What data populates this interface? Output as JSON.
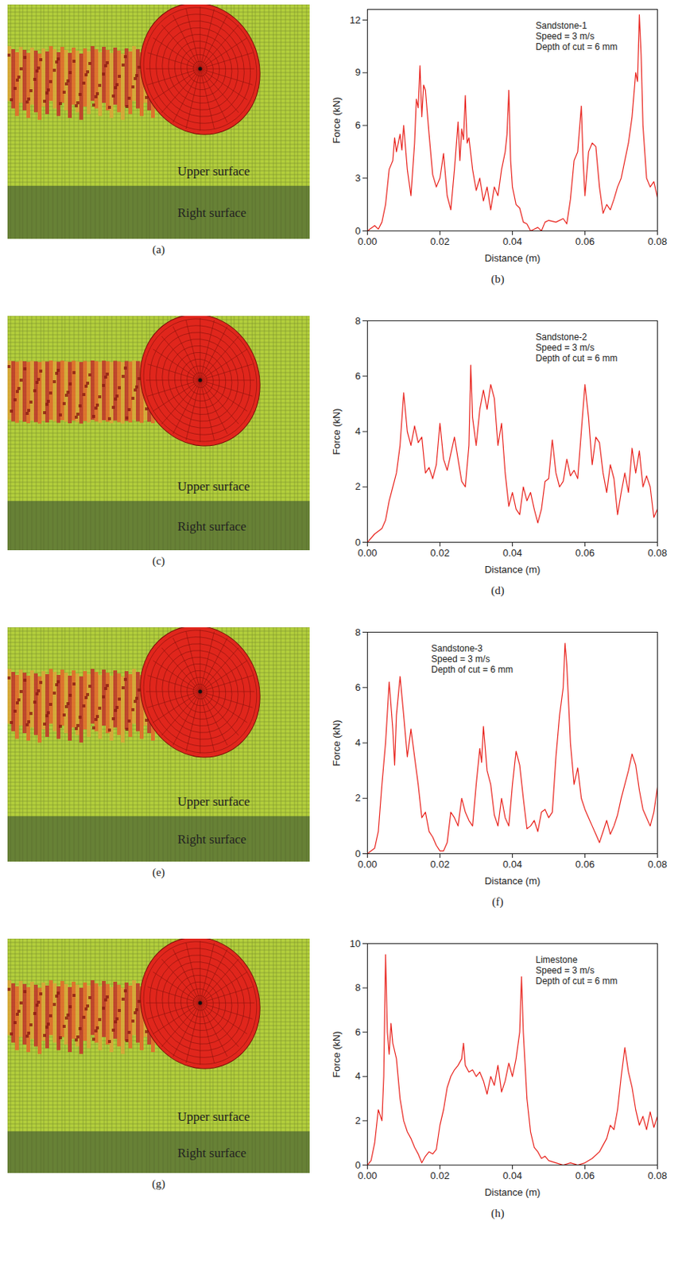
{
  "images": [
    {
      "caption": "(a)",
      "labels": [
        "Upper surface",
        "Right surface"
      ]
    },
    {
      "caption": "(c)",
      "labels": [
        "Upper surface",
        "Right surface"
      ]
    },
    {
      "caption": "(e)",
      "labels": [
        "Upper surface",
        "Right surface"
      ]
    },
    {
      "caption": "(g)",
      "labels": [
        "Upper surface",
        "Right surface"
      ]
    }
  ],
  "chart_data": [
    {
      "type": "line",
      "caption": "(b)",
      "annotations": [
        "Sandstone-1",
        "Speed = 3 m/s",
        "Depth of cut = 6 mm"
      ],
      "x_label": "Distance (m)",
      "y_label": "Force (kN)",
      "color": "#e8201a",
      "xlim": [
        0,
        0.08
      ],
      "xticks": [
        {
          "value": 0,
          "label": "0.00"
        },
        {
          "value": 0.02,
          "label": "0.02"
        },
        {
          "value": 0.04,
          "label": "0.04"
        },
        {
          "value": 0.06,
          "label": "0.06"
        },
        {
          "value": 0.08,
          "label": "0.08"
        }
      ],
      "ylim": [
        0,
        12.6
      ],
      "yticks": [
        0,
        3,
        6,
        9,
        12
      ],
      "x": [
        0,
        0.002,
        0.003,
        0.004,
        0.005,
        0.006,
        0.007,
        0.0075,
        0.008,
        0.009,
        0.0095,
        0.01,
        0.011,
        0.012,
        0.013,
        0.0135,
        0.014,
        0.0145,
        0.015,
        0.0155,
        0.016,
        0.017,
        0.018,
        0.019,
        0.02,
        0.021,
        0.022,
        0.023,
        0.024,
        0.025,
        0.0255,
        0.026,
        0.0265,
        0.027,
        0.0275,
        0.028,
        0.029,
        0.03,
        0.031,
        0.032,
        0.033,
        0.034,
        0.035,
        0.036,
        0.037,
        0.038,
        0.0385,
        0.039,
        0.0395,
        0.04,
        0.041,
        0.042,
        0.043,
        0.044,
        0.045,
        0.046,
        0.047,
        0.048,
        0.049,
        0.05,
        0.052,
        0.054,
        0.055,
        0.056,
        0.057,
        0.058,
        0.059,
        0.0595,
        0.06,
        0.061,
        0.062,
        0.063,
        0.064,
        0.065,
        0.066,
        0.067,
        0.068,
        0.069,
        0.07,
        0.071,
        0.072,
        0.073,
        0.074,
        0.0745,
        0.075,
        0.0755,
        0.076,
        0.077,
        0.078,
        0.079,
        0.08
      ],
      "values": [
        0,
        0.3,
        0.1,
        0.5,
        1.5,
        3.5,
        4.0,
        5.3,
        4.5,
        5.5,
        4.6,
        6.0,
        3.5,
        2.0,
        5.0,
        7.5,
        7.0,
        9.4,
        6.5,
        8.3,
        8.0,
        5.5,
        3.2,
        2.5,
        3.0,
        4.4,
        2.0,
        1.2,
        3.5,
        6.2,
        4.0,
        5.8,
        5.2,
        7.7,
        5.0,
        5.3,
        3.5,
        2.3,
        3.0,
        1.7,
        2.5,
        1.2,
        2.5,
        2.0,
        3.5,
        4.5,
        5.5,
        8.0,
        4.0,
        2.5,
        1.5,
        1.3,
        0.5,
        0.4,
        0.0,
        0.1,
        0.2,
        0.0,
        0.5,
        0.6,
        0.5,
        0.7,
        0.4,
        1.8,
        4.0,
        4.5,
        7.1,
        4.0,
        2.0,
        4.5,
        5.0,
        4.8,
        2.5,
        1.0,
        1.5,
        1.2,
        1.8,
        2.5,
        3.0,
        4.0,
        5.0,
        6.5,
        9.0,
        8.5,
        12.3,
        10.0,
        6.0,
        3.0,
        2.5,
        2.8,
        1.9
      ]
    },
    {
      "type": "line",
      "caption": "(d)",
      "annotations": [
        "Sandstone-2",
        "Speed = 3 m/s",
        "Depth of cut = 6 mm"
      ],
      "x_label": "Distance (m)",
      "y_label": "Force (kN)",
      "color": "#e8201a",
      "xlim": [
        0,
        0.08
      ],
      "xticks": [
        {
          "value": 0,
          "label": "0.00"
        },
        {
          "value": 0.02,
          "label": "0.02"
        },
        {
          "value": 0.04,
          "label": "0.04"
        },
        {
          "value": 0.06,
          "label": "0.06"
        },
        {
          "value": 0.08,
          "label": "0.08"
        }
      ],
      "ylim": [
        0,
        8
      ],
      "yticks": [
        0,
        2,
        4,
        6,
        8
      ],
      "x": [
        0,
        0.002,
        0.004,
        0.005,
        0.006,
        0.007,
        0.008,
        0.009,
        0.01,
        0.011,
        0.012,
        0.013,
        0.014,
        0.015,
        0.016,
        0.017,
        0.018,
        0.019,
        0.02,
        0.021,
        0.022,
        0.023,
        0.024,
        0.025,
        0.026,
        0.027,
        0.028,
        0.0285,
        0.029,
        0.03,
        0.031,
        0.032,
        0.033,
        0.034,
        0.035,
        0.036,
        0.037,
        0.038,
        0.039,
        0.04,
        0.041,
        0.042,
        0.043,
        0.044,
        0.045,
        0.046,
        0.047,
        0.048,
        0.049,
        0.05,
        0.051,
        0.052,
        0.053,
        0.054,
        0.055,
        0.056,
        0.057,
        0.058,
        0.059,
        0.06,
        0.061,
        0.062,
        0.063,
        0.064,
        0.065,
        0.066,
        0.067,
        0.068,
        0.069,
        0.07,
        0.071,
        0.072,
        0.073,
        0.074,
        0.075,
        0.076,
        0.077,
        0.078,
        0.079,
        0.08
      ],
      "values": [
        0,
        0.3,
        0.5,
        0.8,
        1.5,
        2.0,
        2.5,
        3.5,
        5.4,
        4.0,
        3.5,
        4.2,
        3.6,
        3.8,
        2.5,
        2.7,
        2.3,
        2.8,
        4.3,
        3.0,
        2.6,
        3.2,
        3.8,
        3.0,
        2.2,
        2.0,
        3.5,
        6.4,
        4.5,
        3.5,
        4.8,
        5.5,
        4.8,
        5.7,
        5.2,
        3.5,
        4.3,
        2.5,
        1.3,
        1.8,
        1.2,
        1.0,
        2.0,
        1.5,
        1.8,
        1.2,
        0.7,
        1.2,
        2.2,
        2.3,
        3.7,
        2.5,
        2.0,
        2.2,
        3.0,
        2.4,
        2.6,
        2.3,
        4.0,
        5.7,
        4.5,
        2.8,
        3.8,
        3.6,
        2.5,
        1.8,
        2.8,
        2.3,
        1.0,
        1.8,
        2.5,
        1.8,
        3.4,
        2.5,
        3.3,
        2.0,
        2.4,
        2.0,
        0.9,
        1.2
      ]
    },
    {
      "type": "line",
      "caption": "(f)",
      "annotations": [
        "Sandstone-3",
        "Speed = 3 m/s",
        "Depth of cut = 6 mm"
      ],
      "x_label": "Distance (m)",
      "y_label": "Force (kN)",
      "color": "#e8201a",
      "xlim": [
        0,
        0.08
      ],
      "xticks": [
        {
          "value": 0,
          "label": "0.00"
        },
        {
          "value": 0.02,
          "label": "0.02"
        },
        {
          "value": 0.04,
          "label": "0.04"
        },
        {
          "value": 0.06,
          "label": "0.06"
        },
        {
          "value": 0.08,
          "label": "0.08"
        }
      ],
      "ylim": [
        0,
        8
      ],
      "yticks": [
        0,
        2,
        4,
        6,
        8
      ],
      "x": [
        0,
        0.002,
        0.003,
        0.004,
        0.005,
        0.006,
        0.007,
        0.0075,
        0.008,
        0.009,
        0.01,
        0.011,
        0.012,
        0.013,
        0.014,
        0.015,
        0.016,
        0.017,
        0.018,
        0.019,
        0.02,
        0.021,
        0.022,
        0.023,
        0.024,
        0.025,
        0.026,
        0.027,
        0.028,
        0.029,
        0.03,
        0.031,
        0.0315,
        0.032,
        0.033,
        0.034,
        0.035,
        0.036,
        0.037,
        0.038,
        0.039,
        0.04,
        0.041,
        0.042,
        0.043,
        0.044,
        0.045,
        0.046,
        0.047,
        0.048,
        0.049,
        0.05,
        0.051,
        0.052,
        0.053,
        0.054,
        0.0545,
        0.055,
        0.056,
        0.057,
        0.058,
        0.059,
        0.06,
        0.061,
        0.062,
        0.063,
        0.064,
        0.065,
        0.066,
        0.067,
        0.068,
        0.069,
        0.07,
        0.071,
        0.072,
        0.073,
        0.074,
        0.075,
        0.076,
        0.077,
        0.078,
        0.079,
        0.08
      ],
      "values": [
        0,
        0.2,
        0.8,
        2.5,
        4.0,
        6.2,
        4.5,
        3.2,
        5.0,
        6.4,
        5.0,
        3.5,
        4.5,
        3.5,
        2.5,
        1.3,
        1.5,
        0.8,
        0.6,
        0.3,
        0.1,
        0.1,
        0.4,
        1.5,
        1.3,
        1.0,
        2.0,
        1.5,
        1.2,
        1.0,
        2.5,
        3.8,
        3.3,
        4.6,
        3.0,
        2.5,
        1.4,
        1.0,
        2.0,
        1.3,
        1.0,
        2.5,
        3.7,
        3.2,
        2.0,
        0.9,
        1.0,
        1.2,
        0.8,
        1.5,
        1.6,
        1.3,
        1.5,
        3.5,
        5.0,
        6.0,
        7.6,
        6.8,
        4.0,
        2.5,
        3.1,
        2.0,
        1.6,
        1.3,
        1.0,
        0.7,
        0.4,
        0.8,
        1.2,
        0.7,
        1.0,
        1.4,
        2.0,
        2.5,
        3.0,
        3.6,
        3.2,
        2.3,
        1.6,
        1.3,
        1.0,
        1.5,
        2.4
      ]
    },
    {
      "type": "line",
      "caption": "(h)",
      "annotations": [
        "Limestone",
        "Speed = 3 m/s",
        "Depth of cut = 6 mm"
      ],
      "x_label": "Distance (m)",
      "y_label": "Force (kN)",
      "color": "#e8201a",
      "xlim": [
        0,
        0.08
      ],
      "xticks": [
        {
          "value": 0,
          "label": "0.00"
        },
        {
          "value": 0.02,
          "label": "0.02"
        },
        {
          "value": 0.04,
          "label": "0.04"
        },
        {
          "value": 0.06,
          "label": "0.06"
        },
        {
          "value": 0.08,
          "label": "0.08"
        }
      ],
      "ylim": [
        0,
        10
      ],
      "yticks": [
        0,
        2,
        4,
        6,
        8,
        10
      ],
      "x": [
        0,
        0.001,
        0.002,
        0.003,
        0.004,
        0.0045,
        0.005,
        0.0055,
        0.006,
        0.0065,
        0.007,
        0.008,
        0.009,
        0.01,
        0.011,
        0.012,
        0.013,
        0.014,
        0.015,
        0.016,
        0.017,
        0.018,
        0.019,
        0.02,
        0.021,
        0.022,
        0.023,
        0.024,
        0.025,
        0.026,
        0.0265,
        0.027,
        0.028,
        0.029,
        0.03,
        0.031,
        0.032,
        0.033,
        0.034,
        0.035,
        0.036,
        0.037,
        0.038,
        0.039,
        0.04,
        0.041,
        0.042,
        0.0425,
        0.043,
        0.044,
        0.045,
        0.046,
        0.047,
        0.048,
        0.049,
        0.05,
        0.052,
        0.054,
        0.056,
        0.058,
        0.06,
        0.062,
        0.064,
        0.065,
        0.066,
        0.067,
        0.068,
        0.069,
        0.07,
        0.071,
        0.072,
        0.073,
        0.074,
        0.075,
        0.076,
        0.077,
        0.078,
        0.079,
        0.08
      ],
      "values": [
        0,
        0.2,
        1.0,
        2.5,
        2.0,
        4.0,
        9.5,
        6.0,
        5.0,
        6.4,
        5.5,
        4.8,
        3.0,
        2.0,
        1.5,
        1.2,
        0.8,
        0.5,
        0.1,
        0.4,
        0.6,
        0.5,
        0.7,
        1.8,
        2.5,
        3.5,
        4.0,
        4.3,
        4.5,
        4.8,
        5.5,
        4.5,
        4.2,
        4.3,
        4.0,
        4.2,
        3.8,
        3.2,
        4.0,
        3.6,
        4.5,
        3.3,
        3.8,
        4.6,
        4.0,
        4.8,
        6.0,
        8.5,
        6.0,
        3.0,
        1.5,
        0.8,
        0.6,
        0.3,
        0.4,
        0.2,
        0.1,
        0.0,
        0.1,
        0.0,
        0.1,
        0.3,
        0.6,
        0.9,
        1.2,
        1.8,
        1.6,
        2.5,
        4.0,
        5.3,
        4.2,
        3.5,
        2.5,
        1.8,
        2.2,
        1.6,
        2.4,
        1.7,
        2.2
      ]
    }
  ]
}
